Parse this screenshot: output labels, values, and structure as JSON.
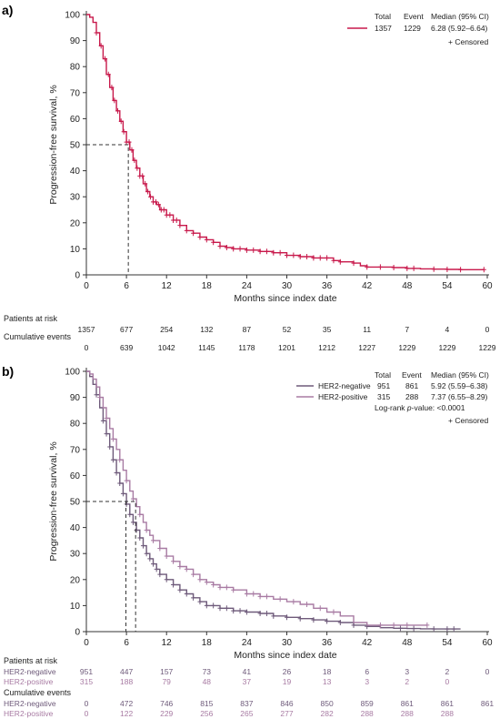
{
  "panel_a": {
    "label": "a)",
    "legend": {
      "headers": [
        "Total",
        "Event",
        "Median (95% CI)"
      ],
      "rows": [
        {
          "total": "1357",
          "event": "1229",
          "median": "6.28 (5.92–6.64)"
        }
      ],
      "censored": "+ Censored"
    },
    "risk_title": "Patients at risk",
    "risk_values": [
      "1357",
      "677",
      "254",
      "132",
      "87",
      "52",
      "35",
      "11",
      "7",
      "4",
      "0"
    ],
    "cum_title": "Cumulative events",
    "cum_values": [
      "0",
      "639",
      "1042",
      "1145",
      "1178",
      "1201",
      "1212",
      "1227",
      "1229",
      "1229",
      "1229"
    ]
  },
  "panel_b": {
    "label": "b)",
    "legend": {
      "headers": [
        "Total",
        "Event",
        "Median (95% CI)"
      ],
      "rows": [
        {
          "name": "HER2-negative",
          "total": "951",
          "event": "861",
          "median": "5.92 (5.59–6.38)"
        },
        {
          "name": "HER2-positive",
          "total": "315",
          "event": "288",
          "median": "7.37 (6.55–8.29)"
        }
      ],
      "logrank_prefix": "Log-rank ",
      "logrank_p": "p",
      "logrank_suffix": "-value: <0.0001",
      "censored": "+ Censored"
    },
    "risk_title": "Patients at risk",
    "risk_rows": [
      {
        "name": "HER2-negative",
        "values": [
          "951",
          "447",
          "157",
          "73",
          "41",
          "26",
          "18",
          "6",
          "3",
          "2",
          "0"
        ]
      },
      {
        "name": "HER2-positive",
        "values": [
          "315",
          "188",
          "79",
          "48",
          "37",
          "19",
          "13",
          "3",
          "2",
          "0",
          ""
        ]
      }
    ],
    "cum_title": "Cumulative events",
    "cum_rows": [
      {
        "name": "HER2-negative",
        "values": [
          "0",
          "472",
          "746",
          "815",
          "837",
          "846",
          "850",
          "859",
          "861",
          "861",
          "861"
        ]
      },
      {
        "name": "HER2-positive",
        "values": [
          "0",
          "122",
          "229",
          "256",
          "265",
          "277",
          "282",
          "288",
          "288",
          "288",
          ""
        ]
      }
    ]
  },
  "colors": {
    "overall": "#c8194b",
    "her2_negative": "#6e5a7a",
    "her2_positive": "#a87ba3",
    "text": "#222222"
  },
  "chart_data": [
    {
      "type": "line",
      "subtype": "kaplan-meier",
      "xlabel": "Months since index date",
      "ylabel": "Progression-free survival, %",
      "xlim": [
        0,
        60
      ],
      "ylim": [
        0,
        100
      ],
      "xticks": [
        0,
        6,
        12,
        18,
        24,
        30,
        36,
        42,
        48,
        54,
        60
      ],
      "yticks": [
        0,
        10,
        20,
        30,
        40,
        50,
        60,
        70,
        80,
        90,
        100
      ],
      "grid": false,
      "legend_position": "top-right",
      "median_marker": {
        "y": 50,
        "x": 6.28
      },
      "series": [
        {
          "key": "overall",
          "x": [
            0,
            0.5,
            1,
            1.5,
            2,
            2.5,
            3,
            3.5,
            4,
            4.5,
            5,
            5.5,
            6,
            6.5,
            7,
            7.5,
            8,
            8.5,
            9,
            9.5,
            10,
            10.5,
            11,
            12,
            13,
            14,
            15,
            16,
            17,
            18,
            19,
            20,
            21,
            22,
            24,
            26,
            28,
            30,
            32,
            34,
            36,
            37,
            38,
            40,
            41,
            42,
            44,
            46,
            48,
            50,
            52,
            54,
            56,
            58,
            59.5
          ],
          "y": [
            100,
            99,
            97,
            93,
            88,
            83,
            77,
            72,
            67,
            63,
            59,
            55,
            51,
            48,
            44,
            41,
            38,
            35,
            32,
            30,
            28,
            27,
            25,
            23,
            21,
            19,
            17,
            16,
            14.5,
            13.5,
            12.5,
            11,
            10.5,
            10,
            9.5,
            9,
            8.5,
            7.5,
            7,
            6.5,
            6.5,
            5.5,
            5,
            4.5,
            3.5,
            3,
            3,
            2.8,
            2.5,
            2.3,
            2.2,
            2.1,
            2,
            2,
            2
          ],
          "censored_x": [
            1.5,
            2.2,
            2.8,
            3.3,
            3.8,
            4.2,
            4.7,
            5.2,
            5.6,
            6,
            6.4,
            6.8,
            7.2,
            7.6,
            8,
            8.4,
            8.8,
            9.2,
            9.6,
            10,
            10.4,
            10.8,
            11.2,
            11.6,
            12,
            12.5,
            13,
            13.5,
            14,
            15,
            16,
            17,
            18,
            19,
            20,
            21,
            22,
            23,
            24,
            25,
            26,
            27,
            28,
            29,
            30,
            31,
            32,
            33,
            34,
            35,
            36,
            37,
            38,
            40,
            42,
            44,
            46,
            48,
            49,
            52,
            54,
            56,
            59.5
          ]
        },
        {
          "key": "her2_negative",
          "x": [
            0,
            0.5,
            1,
            1.5,
            2,
            2.5,
            3,
            3.5,
            4,
            4.5,
            5,
            5.5,
            6,
            6.5,
            7,
            7.5,
            8,
            8.5,
            9,
            9.5,
            10,
            10.5,
            11,
            12,
            13,
            14,
            15,
            16,
            17,
            18,
            20,
            22,
            24,
            26,
            28,
            30,
            32,
            34,
            36,
            38,
            40,
            42,
            44,
            46,
            48,
            50,
            52,
            54,
            56
          ],
          "y": [
            100,
            98,
            95,
            91,
            86,
            81,
            76,
            71,
            66,
            61,
            57,
            53,
            49,
            45,
            42,
            39,
            36,
            33,
            30,
            28,
            26,
            24,
            22,
            20,
            18,
            16,
            14.5,
            13,
            11.5,
            10,
            9,
            8,
            7.5,
            7,
            6,
            5.5,
            5,
            4.5,
            4,
            3.5,
            2.5,
            2,
            1.5,
            1.3,
            1.2,
            1.1,
            1,
            1,
            1
          ],
          "censored_x": [
            1.5,
            2.5,
            3,
            3.5,
            4,
            4.5,
            5,
            5.5,
            6,
            6.5,
            7,
            7.5,
            8,
            8.5,
            9,
            9.5,
            10,
            10.5,
            11,
            12,
            13,
            14,
            15,
            16,
            17,
            18,
            19,
            20,
            21,
            22,
            23,
            24,
            26,
            27,
            28,
            30,
            32,
            34,
            36,
            38,
            40,
            42,
            47,
            49,
            52,
            54,
            55
          ]
        },
        {
          "key": "her2_positive",
          "x": [
            0,
            0.5,
            1,
            1.5,
            2,
            2.5,
            3,
            3.5,
            4,
            4.5,
            5,
            5.5,
            6,
            6.5,
            7,
            7.5,
            8,
            8.5,
            9,
            9.5,
            10,
            11,
            12,
            13,
            14,
            15,
            16,
            17,
            18,
            19,
            20,
            22,
            24,
            26,
            28,
            30,
            32,
            34,
            36,
            38,
            40,
            42,
            44,
            51
          ],
          "y": [
            100,
            99,
            97,
            94,
            90,
            86,
            82,
            78,
            74,
            70,
            66,
            62,
            58,
            54,
            51,
            48,
            45,
            42,
            39,
            37,
            35,
            32,
            29,
            27,
            25,
            24,
            22,
            20,
            19,
            18,
            17,
            16,
            14.5,
            13.5,
            12.5,
            11.5,
            10.5,
            9,
            7.5,
            6,
            3.5,
            2.5,
            2.5,
            2.5
          ],
          "censored_x": [
            2,
            3,
            4,
            5,
            6,
            7,
            8,
            9,
            10,
            11,
            12,
            13,
            14,
            15,
            16,
            17,
            18,
            19,
            20,
            21,
            22,
            24,
            25,
            26,
            27,
            29,
            31,
            33,
            35,
            37,
            44,
            46,
            48,
            51
          ]
        }
      ]
    }
  ]
}
